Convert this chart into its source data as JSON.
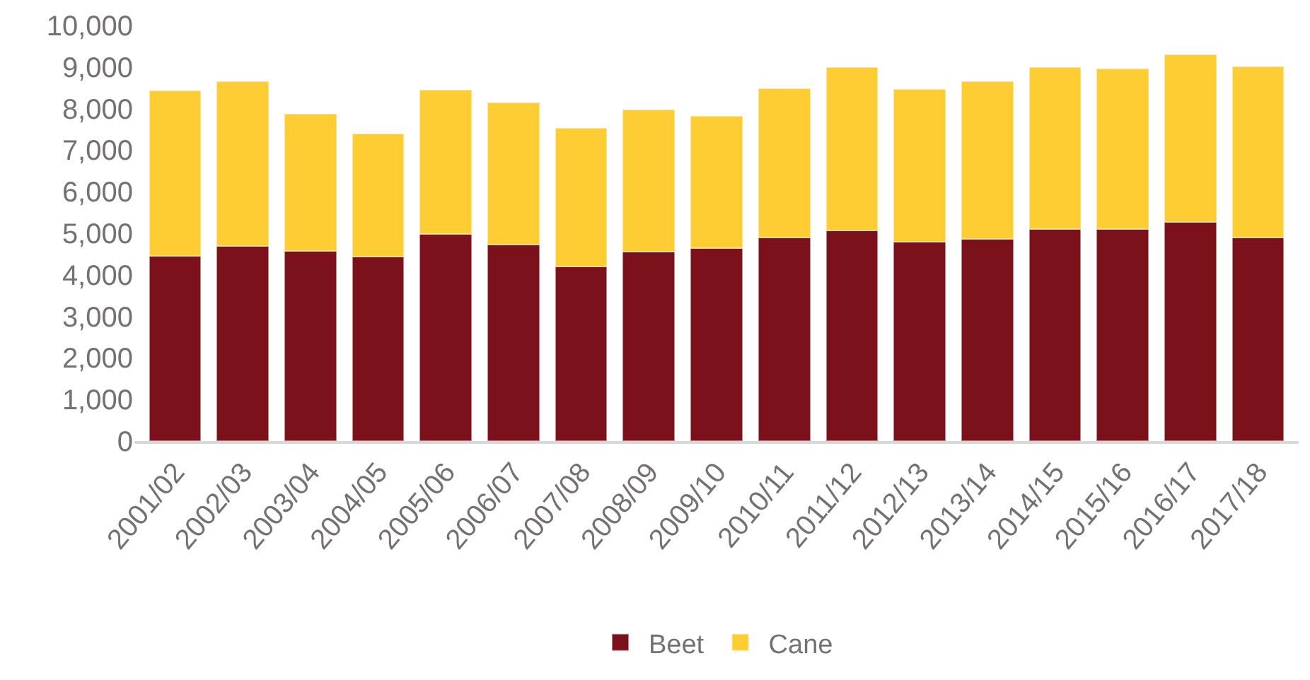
{
  "chart_data": {
    "type": "bar",
    "stacked": true,
    "categories": [
      "2001/02",
      "2002/03",
      "2003/04",
      "2004/05",
      "2005/06",
      "2006/07",
      "2007/08",
      "2008/09",
      "2009/10",
      "2010/11",
      "2011/12",
      "2012/13",
      "2013/14",
      "2014/15",
      "2015/16",
      "2016/17",
      "2017/18"
    ],
    "series": [
      {
        "name": "Beet",
        "color": "#7b111b",
        "values": [
          4460,
          4690,
          4580,
          4440,
          4990,
          4720,
          4200,
          4560,
          4650,
          4890,
          5070,
          4790,
          4870,
          5110,
          5100,
          5270,
          4890
        ]
      },
      {
        "name": "Cane",
        "color": "#fdcd33",
        "values": [
          3970,
          3960,
          3300,
          2960,
          3460,
          3430,
          3330,
          3410,
          3180,
          3600,
          3920,
          3680,
          3780,
          3890,
          3870,
          4030,
          4130
        ]
      }
    ],
    "ylim": [
      0,
      10000
    ],
    "yticks": [
      {
        "value": 0,
        "label": "0"
      },
      {
        "value": 1000,
        "label": "1,000"
      },
      {
        "value": 2000,
        "label": "2,000"
      },
      {
        "value": 3000,
        "label": "3,000"
      },
      {
        "value": 4000,
        "label": "4,000"
      },
      {
        "value": 5000,
        "label": "5,000"
      },
      {
        "value": 6000,
        "label": "6,000"
      },
      {
        "value": 7000,
        "label": "7,000"
      },
      {
        "value": 8000,
        "label": "8,000"
      },
      {
        "value": 9000,
        "label": "9,000"
      },
      {
        "value": 10000,
        "label": "10,000"
      }
    ],
    "grid": false,
    "legend": "bottom"
  }
}
